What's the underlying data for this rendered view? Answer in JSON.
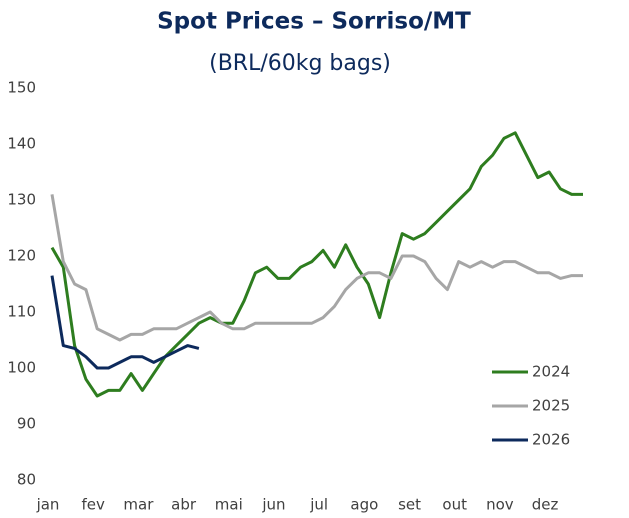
{
  "chart_data": {
    "type": "line",
    "title": "Spot Prices – Sorriso/MT",
    "subtitle": "(BRL/60kg bags)",
    "categories": [
      "jan",
      null,
      null,
      null,
      "fev",
      null,
      null,
      null,
      "mar",
      null,
      null,
      null,
      "abr",
      null,
      null,
      null,
      "mai",
      null,
      null,
      null,
      "jun",
      null,
      null,
      null,
      "jul",
      null,
      null,
      null,
      "ago",
      null,
      null,
      null,
      "set",
      null,
      null,
      null,
      "out",
      null,
      null,
      null,
      "nov",
      null,
      null,
      null,
      "dez",
      null,
      null,
      null
    ],
    "series": [
      {
        "name": "2024",
        "color": "#2e7d1f",
        "values": [
          121.5,
          118,
          104,
          98,
          95,
          96,
          96,
          99,
          96,
          99,
          102,
          104,
          106,
          108,
          109,
          108,
          108,
          112,
          117,
          118,
          116,
          116,
          118,
          119,
          121,
          118,
          122,
          118,
          115,
          109,
          117,
          124,
          123,
          124,
          126,
          128,
          130,
          132,
          136,
          138,
          141,
          142,
          138,
          134,
          135,
          132,
          131,
          131
        ]
      },
      {
        "name": "2025",
        "color": "#a6a6a6",
        "values": [
          131,
          119,
          115,
          114,
          107,
          106,
          105,
          106,
          106,
          107,
          107,
          107,
          108,
          109,
          110,
          108,
          107,
          107,
          108,
          108,
          108,
          108,
          108,
          108,
          109,
          111,
          114,
          116,
          117,
          117,
          116,
          120,
          120,
          119,
          116,
          114,
          119,
          118,
          119,
          118,
          119,
          119,
          118,
          117,
          117,
          116,
          116.5,
          116.5
        ]
      },
      {
        "name": "2026",
        "color": "#0d2a5c",
        "values": [
          116.5,
          104,
          103.5,
          102,
          100,
          100,
          101,
          102,
          102,
          101,
          102,
          103,
          104,
          103.5,
          null,
          null,
          null,
          null,
          null,
          null,
          null,
          null,
          null,
          null,
          null,
          null,
          null,
          null,
          null,
          null,
          null,
          null,
          null,
          null,
          null,
          null,
          null,
          null,
          null,
          null,
          null,
          null,
          null,
          null,
          null,
          null,
          null,
          null
        ]
      }
    ],
    "ylim": [
      80,
      150
    ],
    "yticks": [
      80,
      90,
      100,
      110,
      120,
      130,
      140,
      150
    ]
  }
}
